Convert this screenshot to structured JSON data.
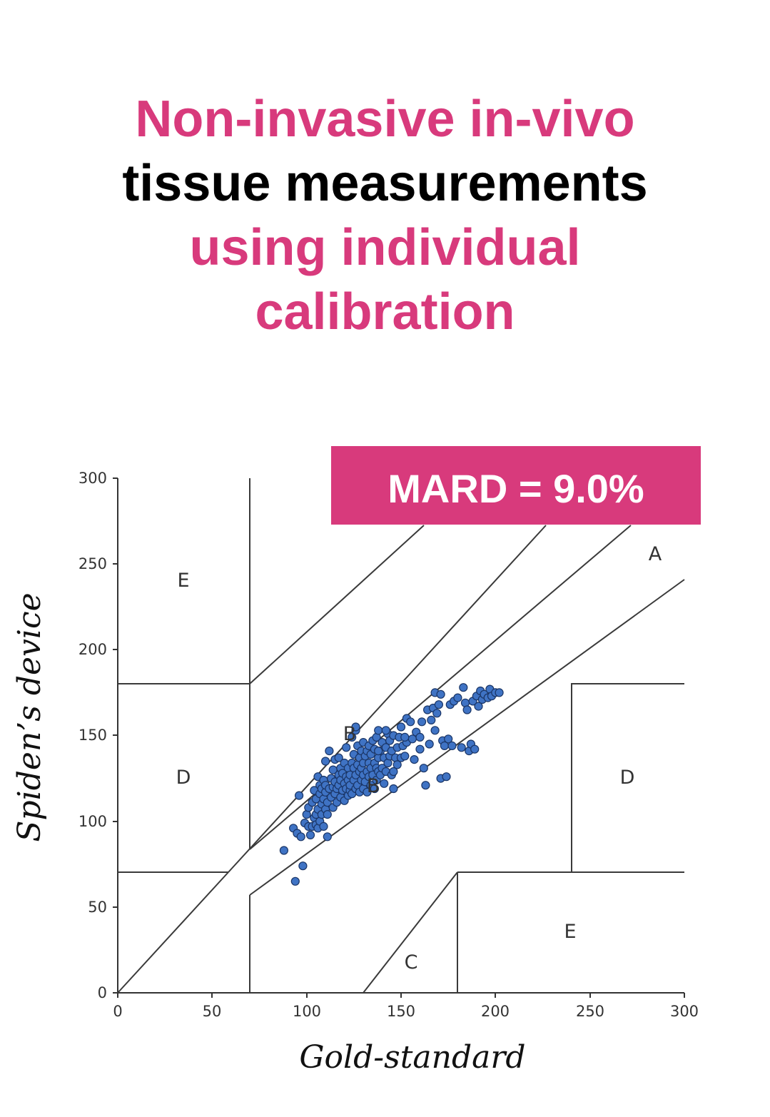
{
  "title": {
    "line1": "Non-invasive in-vivo",
    "line2": "tissue measurements",
    "line3": "using individual",
    "line4": "calibration"
  },
  "colors": {
    "accent": "#d83a7c",
    "points": "#3f73c4",
    "lines": "#3a3a3a"
  },
  "chart_data": {
    "type": "scatter",
    "xlabel": "Gold-standard",
    "ylabel": "Spiden’s device",
    "xlim": [
      0,
      300
    ],
    "ylim": [
      0,
      300
    ],
    "x_ticks": [
      "0",
      "50",
      "100",
      "150",
      "200",
      "250",
      "300"
    ],
    "y_ticks": [
      "0",
      "50",
      "100",
      "150",
      "200",
      "250",
      "300"
    ],
    "annotation": "MARD = 9.0%",
    "zone_labels": {
      "A": "A",
      "B_upper": "B",
      "B_lower": "B",
      "C": "C",
      "D_left": "D",
      "D_right": "D",
      "E_upper": "E",
      "E_lower": "E"
    },
    "grid": false,
    "points": [
      [
        88,
        83
      ],
      [
        93,
        96
      ],
      [
        94,
        65
      ],
      [
        95,
        93
      ],
      [
        96,
        115
      ],
      [
        97,
        91
      ],
      [
        98,
        74
      ],
      [
        99,
        99
      ],
      [
        100,
        104
      ],
      [
        101,
        97
      ],
      [
        101,
        108
      ],
      [
        102,
        92
      ],
      [
        103,
        111
      ],
      [
        103,
        97
      ],
      [
        104,
        102
      ],
      [
        104,
        118
      ],
      [
        105,
        98
      ],
      [
        105,
        104
      ],
      [
        105,
        113
      ],
      [
        106,
        96
      ],
      [
        106,
        107
      ],
      [
        106,
        126
      ],
      [
        107,
        116
      ],
      [
        107,
        100
      ],
      [
        107,
        121
      ],
      [
        108,
        104
      ],
      [
        108,
        110
      ],
      [
        108,
        119
      ],
      [
        109,
        97
      ],
      [
        109,
        113
      ],
      [
        109,
        124
      ],
      [
        110,
        107
      ],
      [
        110,
        117
      ],
      [
        110,
        135
      ],
      [
        110,
        121
      ],
      [
        111,
        104
      ],
      [
        111,
        111
      ],
      [
        111,
        91
      ],
      [
        112,
        119
      ],
      [
        112,
        141
      ],
      [
        113,
        114
      ],
      [
        113,
        125
      ],
      [
        114,
        108
      ],
      [
        114,
        120
      ],
      [
        114,
        130
      ],
      [
        115,
        116
      ],
      [
        115,
        123
      ],
      [
        115,
        136
      ],
      [
        116,
        111
      ],
      [
        116,
        119
      ],
      [
        117,
        121
      ],
      [
        117,
        127
      ],
      [
        117,
        137
      ],
      [
        118,
        114
      ],
      [
        118,
        124
      ],
      [
        118,
        131
      ],
      [
        119,
        118
      ],
      [
        119,
        128
      ],
      [
        120,
        112
      ],
      [
        120,
        122
      ],
      [
        120,
        134
      ],
      [
        121,
        119
      ],
      [
        121,
        126
      ],
      [
        121,
        143
      ],
      [
        122,
        115
      ],
      [
        122,
        124
      ],
      [
        122,
        131
      ],
      [
        123,
        118
      ],
      [
        123,
        127
      ],
      [
        123,
        121
      ],
      [
        124,
        134
      ],
      [
        124,
        149
      ],
      [
        124,
        116
      ],
      [
        125,
        124
      ],
      [
        125,
        131
      ],
      [
        125,
        139
      ],
      [
        126,
        119
      ],
      [
        126,
        127
      ],
      [
        126,
        153
      ],
      [
        127,
        121
      ],
      [
        127,
        133
      ],
      [
        127,
        144
      ],
      [
        128,
        117
      ],
      [
        128,
        129
      ],
      [
        128,
        137
      ],
      [
        129,
        124
      ],
      [
        129,
        131
      ],
      [
        129,
        141
      ],
      [
        130,
        119
      ],
      [
        130,
        127
      ],
      [
        130,
        134
      ],
      [
        130,
        146
      ],
      [
        131,
        123
      ],
      [
        131,
        138
      ],
      [
        132,
        117
      ],
      [
        132,
        129
      ],
      [
        132,
        141
      ],
      [
        133,
        126
      ],
      [
        133,
        134
      ],
      [
        133,
        144
      ],
      [
        134,
        121
      ],
      [
        134,
        131
      ],
      [
        134,
        139
      ],
      [
        135,
        127
      ],
      [
        135,
        147
      ],
      [
        136,
        119
      ],
      [
        136,
        134
      ],
      [
        136,
        142
      ],
      [
        137,
        124
      ],
      [
        137,
        131
      ],
      [
        137,
        149
      ],
      [
        138,
        129
      ],
      [
        138,
        137
      ],
      [
        138,
        153
      ],
      [
        139,
        127
      ],
      [
        139,
        141
      ],
      [
        140,
        131
      ],
      [
        140,
        146
      ],
      [
        141,
        122
      ],
      [
        141,
        137
      ],
      [
        142,
        129
      ],
      [
        142,
        143
      ],
      [
        143,
        151
      ],
      [
        143,
        134
      ],
      [
        144,
        138
      ],
      [
        144,
        147
      ],
      [
        145,
        127
      ],
      [
        145,
        141
      ],
      [
        146,
        119
      ],
      [
        146,
        150
      ],
      [
        147,
        137
      ],
      [
        148,
        143
      ],
      [
        148,
        133
      ],
      [
        149,
        149
      ],
      [
        150,
        137
      ],
      [
        150,
        155
      ],
      [
        151,
        144
      ],
      [
        152,
        138
      ],
      [
        153,
        160
      ],
      [
        153,
        146
      ],
      [
        155,
        158
      ],
      [
        156,
        148
      ],
      [
        157,
        136
      ],
      [
        158,
        152
      ],
      [
        160,
        142
      ],
      [
        161,
        158
      ],
      [
        162,
        131
      ],
      [
        163,
        121
      ],
      [
        164,
        165
      ],
      [
        165,
        145
      ],
      [
        166,
        159
      ],
      [
        167,
        166
      ],
      [
        168,
        153
      ],
      [
        169,
        163
      ],
      [
        170,
        168
      ],
      [
        171,
        125
      ],
      [
        172,
        147
      ],
      [
        173,
        144
      ],
      [
        174,
        126
      ],
      [
        175,
        148
      ],
      [
        176,
        168
      ],
      [
        177,
        144
      ],
      [
        178,
        170
      ],
      [
        180,
        172
      ],
      [
        182,
        143
      ],
      [
        183,
        178
      ],
      [
        184,
        169
      ],
      [
        185,
        165
      ],
      [
        186,
        141
      ],
      [
        187,
        145
      ],
      [
        188,
        170
      ],
      [
        189,
        142
      ],
      [
        190,
        173
      ],
      [
        191,
        167
      ],
      [
        192,
        176
      ],
      [
        193,
        171
      ],
      [
        194,
        174
      ],
      [
        196,
        172
      ],
      [
        197,
        177
      ],
      [
        198,
        173
      ],
      [
        200,
        175
      ],
      [
        202,
        175
      ],
      [
        168,
        175
      ],
      [
        171,
        174
      ],
      [
        126,
        155
      ],
      [
        142,
        153
      ],
      [
        152,
        149
      ],
      [
        138,
        141
      ],
      [
        146,
        129
      ],
      [
        160,
        149
      ]
    ]
  }
}
